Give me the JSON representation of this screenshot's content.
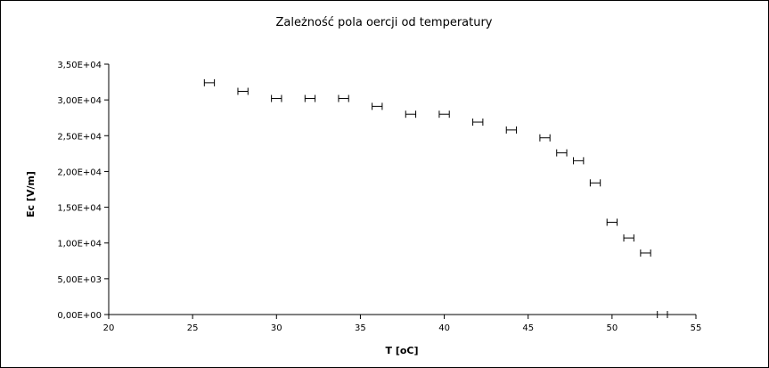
{
  "chart_data": {
    "type": "scatter",
    "title": "Zależność pola oercji od temperatury",
    "xlabel": "T [oC]",
    "ylabel": "Ec [V/m]",
    "xlim": [
      20,
      55
    ],
    "ylim": [
      0,
      35000
    ],
    "grid": false,
    "legend": "none",
    "x_ticks": [
      20,
      25,
      30,
      35,
      40,
      45,
      50,
      55
    ],
    "x_tick_labels": [
      "20",
      "25",
      "30",
      "35",
      "40",
      "45",
      "50",
      "55"
    ],
    "y_ticks": [
      0,
      5000,
      10000,
      15000,
      20000,
      25000,
      30000,
      35000
    ],
    "y_tick_labels": [
      "0,00E+00",
      "5,00E+03",
      "1,00E+04",
      "1,50E+04",
      "2,00E+04",
      "2,50E+04",
      "3,00E+04",
      "3,50E+04"
    ],
    "error_bar_x": 0.3,
    "colors": {
      "marks": "#000000",
      "axes": "#000000",
      "background": "#ffffff"
    },
    "series": [
      {
        "points": [
          {
            "x": 26,
            "y": 32400
          },
          {
            "x": 28,
            "y": 31200
          },
          {
            "x": 30,
            "y": 30200
          },
          {
            "x": 32,
            "y": 30200
          },
          {
            "x": 34,
            "y": 30200
          },
          {
            "x": 36,
            "y": 29100
          },
          {
            "x": 38,
            "y": 28000
          },
          {
            "x": 40,
            "y": 28000
          },
          {
            "x": 42,
            "y": 26900
          },
          {
            "x": 44,
            "y": 25800
          },
          {
            "x": 46,
            "y": 24700
          },
          {
            "x": 47,
            "y": 22600
          },
          {
            "x": 48,
            "y": 21500
          },
          {
            "x": 49,
            "y": 18400
          },
          {
            "x": 50,
            "y": 12900
          },
          {
            "x": 51,
            "y": 10700
          },
          {
            "x": 52,
            "y": 8600
          },
          {
            "x": 53,
            "y": 0
          }
        ]
      }
    ]
  }
}
